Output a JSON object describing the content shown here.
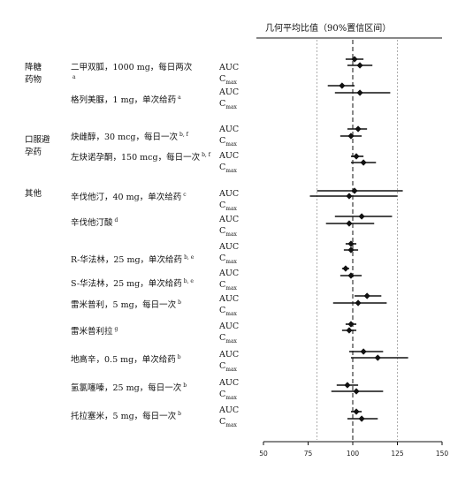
{
  "chart_data": {
    "type": "forest",
    "title": "几何平均比值（90%置信区间）",
    "xlim": [
      50,
      150
    ],
    "x_ticks": [
      50,
      75,
      100,
      125,
      150
    ],
    "reference_lines": [
      80,
      100,
      125
    ],
    "categories": [
      {
        "name": "降糖药物"
      },
      {
        "name": "口服避孕药"
      },
      {
        "name": "其他"
      }
    ],
    "drugs": [
      {
        "label": "二甲双胍，1000 mg，每日两次",
        "sup": "a"
      },
      {
        "label": "格列美脲，1 mg，单次给药",
        "sup": "a"
      },
      {
        "label": "炔雌醇，30 mcg，每日一次",
        "sup": "b, f"
      },
      {
        "label": "左炔诺孕酮，150 mcg，每日一次",
        "sup": "b, f"
      },
      {
        "label": "辛伐他汀，40 mg，单次给药",
        "sup": "c"
      },
      {
        "label": "辛伐他汀酸",
        "sup": "d"
      },
      {
        "label": "R-华法林，25 mg，单次给药",
        "sup": "b, e"
      },
      {
        "label": "S-华法林，25 mg，单次给药",
        "sup": "b, e"
      },
      {
        "label": "雷米普利，5 mg，每日一次",
        "sup": "b"
      },
      {
        "label": "雷米普利拉",
        "sup": "g"
      },
      {
        "label": "地高辛，0.5 mg，单次给药",
        "sup": "b"
      },
      {
        "label": "氢氯噻嗪，25 mg，每日一次",
        "sup": "b"
      },
      {
        "label": "托拉塞米，5 mg，每日一次",
        "sup": "b"
      }
    ],
    "metrics": {
      "auc": "AUC",
      "cmax_prefix": "C",
      "cmax_sub": "max"
    },
    "series": [
      {
        "drug": "二甲双胍，1000 mg，每日两次",
        "metric": "AUC",
        "estimate": 101,
        "lower": 96,
        "upper": 106
      },
      {
        "drug": "二甲双胍，1000 mg，每日两次",
        "metric": "Cmax",
        "estimate": 104,
        "lower": 97,
        "upper": 111
      },
      {
        "drug": "格列美脲，1 mg，单次给药",
        "metric": "AUC",
        "estimate": 94,
        "lower": 86,
        "upper": 101
      },
      {
        "drug": "格列美脲，1 mg，单次给药",
        "metric": "Cmax",
        "estimate": 104,
        "lower": 90,
        "upper": 121
      },
      {
        "drug": "炔雌醇，30 mcg，每日一次",
        "metric": "AUC",
        "estimate": 103,
        "lower": 97,
        "upper": 108
      },
      {
        "drug": "炔雌醇，30 mcg，每日一次",
        "metric": "Cmax",
        "estimate": 99,
        "lower": 93,
        "upper": 105
      },
      {
        "drug": "左炔诺孕酮，150 mcg，每日一次",
        "metric": "AUC",
        "estimate": 102,
        "lower": 99,
        "upper": 106
      },
      {
        "drug": "左炔诺孕酮，150 mcg，每日一次",
        "metric": "Cmax",
        "estimate": 106,
        "lower": 99,
        "upper": 113
      },
      {
        "drug": "辛伐他汀，40 mg，单次给药",
        "metric": "AUC",
        "estimate": 101,
        "lower": 80,
        "upper": 128
      },
      {
        "drug": "辛伐他汀，40 mg，单次给药",
        "metric": "Cmax",
        "estimate": 98,
        "lower": 76,
        "upper": 125
      },
      {
        "drug": "辛伐他汀酸",
        "metric": "AUC",
        "estimate": 105,
        "lower": 90,
        "upper": 122
      },
      {
        "drug": "辛伐他汀酸",
        "metric": "Cmax",
        "estimate": 98,
        "lower": 85,
        "upper": 112
      },
      {
        "drug": "R-华法林，25 mg，单次给药",
        "metric": "AUC",
        "estimate": 99,
        "lower": 96,
        "upper": 102
      },
      {
        "drug": "R-华法林，25 mg，单次给药",
        "metric": "Cmax",
        "estimate": 99,
        "lower": 95,
        "upper": 103
      },
      {
        "drug": "S-华法林，25 mg，单次给药",
        "metric": "AUC",
        "estimate": 96,
        "lower": 94,
        "upper": 98
      },
      {
        "drug": "S-华法林，25 mg，单次给药",
        "metric": "Cmax",
        "estimate": 99,
        "lower": 93,
        "upper": 105
      },
      {
        "drug": "雷米普利，5 mg，每日一次",
        "metric": "AUC",
        "estimate": 108,
        "lower": 101,
        "upper": 116
      },
      {
        "drug": "雷米普利，5 mg，每日一次",
        "metric": "Cmax",
        "estimate": 103,
        "lower": 89,
        "upper": 119
      },
      {
        "drug": "雷米普利拉",
        "metric": "AUC",
        "estimate": 99,
        "lower": 96,
        "upper": 102
      },
      {
        "drug": "雷米普利拉",
        "metric": "Cmax",
        "estimate": 98,
        "lower": 94,
        "upper": 102
      },
      {
        "drug": "地高辛，0.5 mg，单次给药",
        "metric": "AUC",
        "estimate": 106,
        "lower": 98,
        "upper": 117
      },
      {
        "drug": "地高辛，0.5 mg，单次给药",
        "metric": "Cmax",
        "estimate": 114,
        "lower": 99,
        "upper": 131
      },
      {
        "drug": "氢氯噻嗪，25 mg，每日一次",
        "metric": "AUC",
        "estimate": 97,
        "lower": 91,
        "upper": 103
      },
      {
        "drug": "氢氯噻嗪，25 mg，每日一次",
        "metric": "Cmax",
        "estimate": 102,
        "lower": 88,
        "upper": 117
      },
      {
        "drug": "托拉塞米，5 mg，每日一次",
        "metric": "AUC",
        "estimate": 102,
        "lower": 99,
        "upper": 105
      },
      {
        "drug": "托拉塞米，5 mg，每日一次",
        "metric": "Cmax",
        "estimate": 105,
        "lower": 97,
        "upper": 114
      }
    ],
    "grid": false
  }
}
